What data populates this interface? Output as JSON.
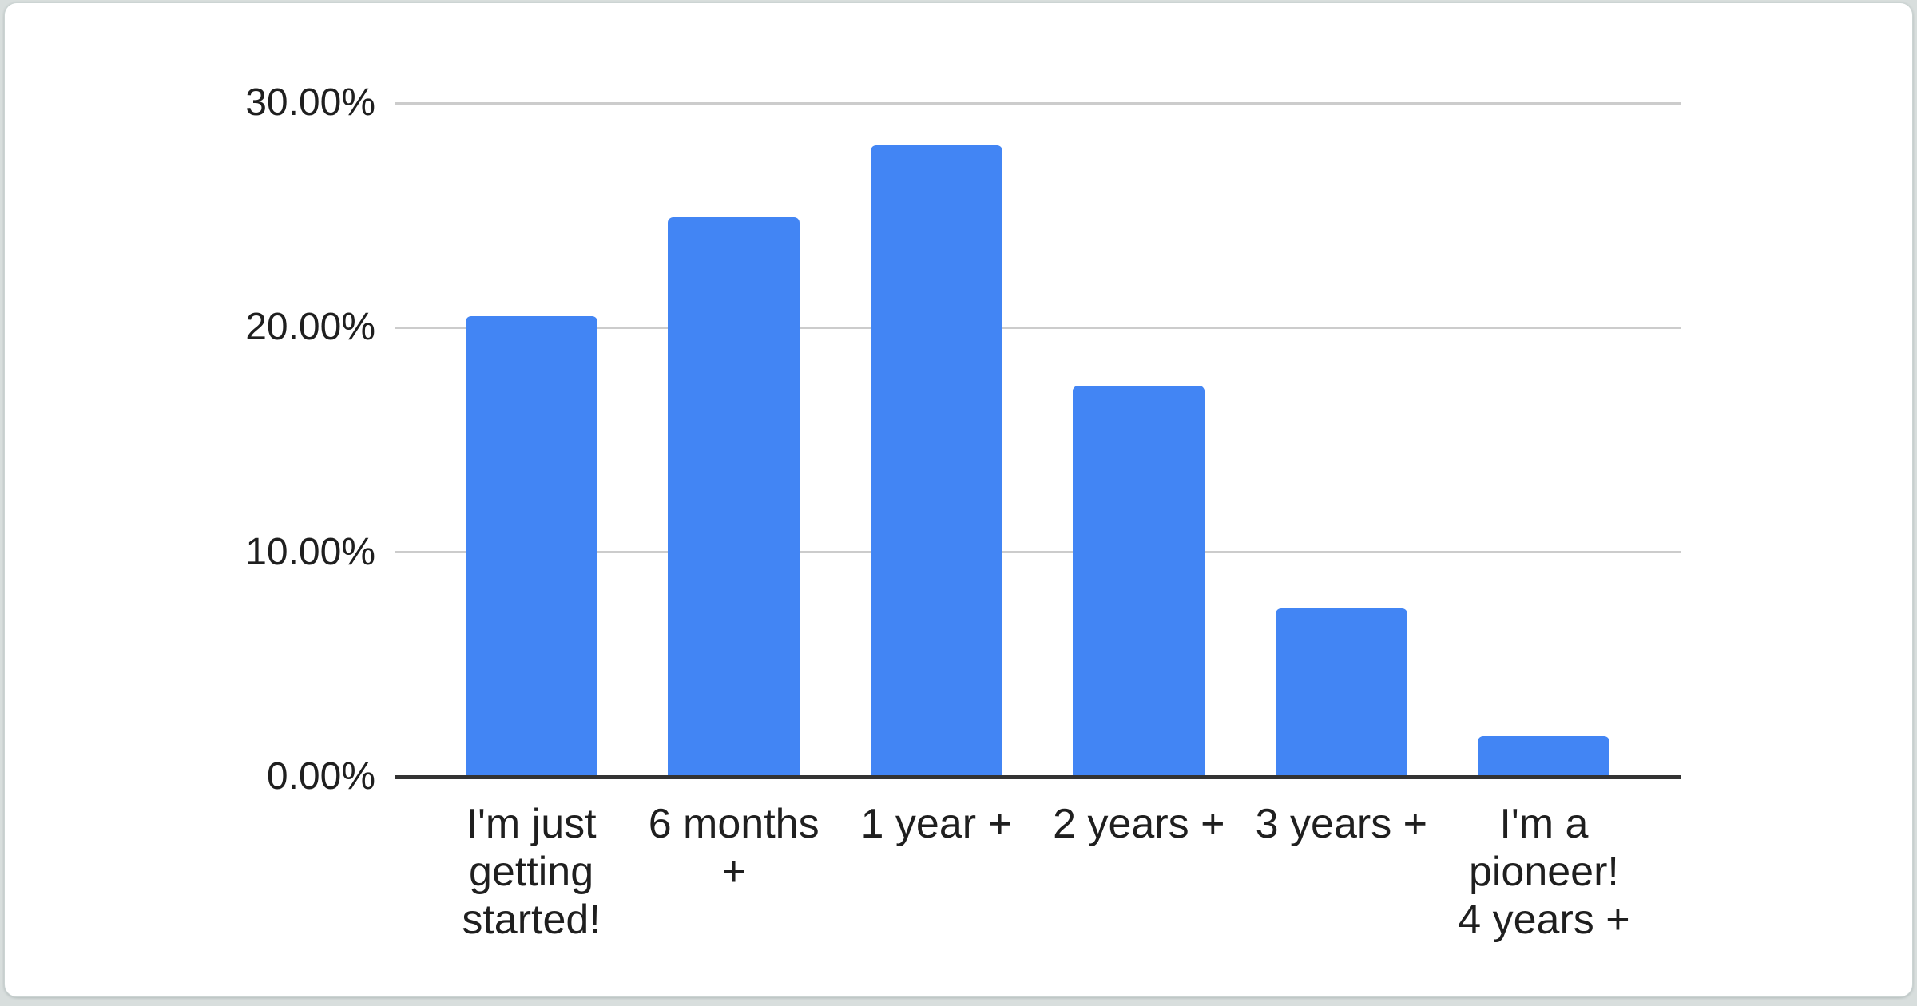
{
  "chart_data": {
    "type": "bar",
    "title": "",
    "categories": [
      "I'm just getting started!",
      "6 months +",
      "1 year +",
      "2 years +",
      "3 years +",
      "I'm a pioneer! 4 years +"
    ],
    "category_lines": [
      [
        "I'm just",
        "getting",
        "started!"
      ],
      [
        "6 months",
        "+"
      ],
      [
        "1 year +"
      ],
      [
        "2 years +"
      ],
      [
        "3 years +"
      ],
      [
        "I'm a",
        "pioneer!",
        "4 years +"
      ]
    ],
    "values": [
      20.5,
      24.9,
      28.1,
      17.4,
      7.5,
      1.8
    ],
    "value_unit": "percent",
    "xlabel": "",
    "ylabel": "",
    "ylim": [
      0,
      30
    ],
    "yticks": [
      {
        "value": 0,
        "label": "0.00%"
      },
      {
        "value": 10,
        "label": "10.00%"
      },
      {
        "value": 20,
        "label": "20.00%"
      },
      {
        "value": 30,
        "label": "30.00%"
      }
    ],
    "grid": true,
    "legend_position": "none",
    "colors": {
      "bar": "#4285F4",
      "gridline": "#cccccc",
      "axis_line": "#333333",
      "label_text": "#1f1f1f",
      "card_background": "#ffffff",
      "page_background": "#d8dedd"
    }
  }
}
